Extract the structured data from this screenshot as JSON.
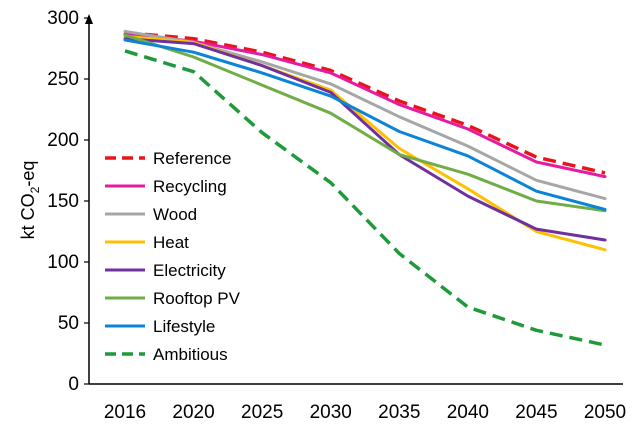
{
  "chart_data": {
    "type": "line",
    "x": [
      "2016",
      "2020",
      "2025",
      "2030",
      "2035",
      "2040",
      "2045",
      "2050"
    ],
    "ylabel": {
      "prefix": "kt CO",
      "subscript": "2",
      "suffix": "-eq"
    },
    "ylim": [
      0,
      300
    ],
    "yticks": [
      "0",
      "50",
      "100",
      "150",
      "200",
      "250",
      "300"
    ],
    "grid": false,
    "legend_position": "left",
    "series": [
      {
        "name": "Reference",
        "color": "#e8141c",
        "dash": true,
        "values": [
          288,
          283,
          272,
          257,
          232,
          212,
          186,
          173
        ]
      },
      {
        "name": "Recycling",
        "color": "#e61ca0",
        "dash": false,
        "values": [
          287,
          281,
          270,
          255,
          229,
          209,
          182,
          170
        ]
      },
      {
        "name": "Wood",
        "color": "#a6a6a6",
        "dash": false,
        "values": [
          289,
          280,
          264,
          246,
          219,
          195,
          167,
          152
        ]
      },
      {
        "name": "Heat",
        "color": "#ffc000",
        "dash": false,
        "values": [
          285,
          280,
          261,
          241,
          193,
          160,
          125,
          110
        ]
      },
      {
        "name": "Electricity",
        "color": "#7030a0",
        "dash": false,
        "values": [
          283,
          279,
          261,
          239,
          188,
          154,
          127,
          118
        ]
      },
      {
        "name": "Rooftop PV",
        "color": "#70ad47",
        "dash": false,
        "values": [
          286,
          268,
          245,
          222,
          188,
          172,
          150,
          142
        ]
      },
      {
        "name": "Lifestyle",
        "color": "#0b84d8",
        "dash": false,
        "values": [
          282,
          272,
          255,
          236,
          207,
          187,
          158,
          143
        ]
      },
      {
        "name": "Ambitious",
        "color": "#1e9a3a",
        "dash": true,
        "values": [
          273,
          256,
          206,
          165,
          107,
          63,
          44,
          32
        ]
      }
    ]
  }
}
